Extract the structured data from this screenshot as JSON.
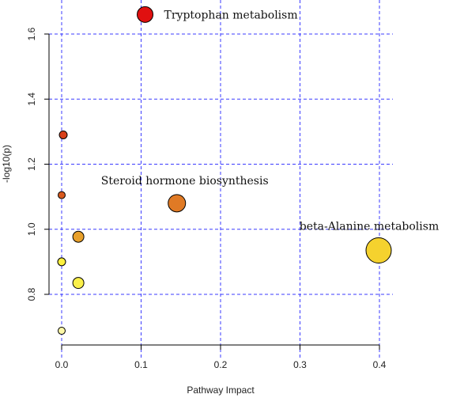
{
  "chart_data": {
    "type": "scatter",
    "title": "",
    "xlabel": "Pathway Impact",
    "ylabel": "-log10(p)",
    "xlim": [
      -0.01,
      0.42
    ],
    "ylim": [
      0.65,
      1.72
    ],
    "x_ticks": [
      0.0,
      0.1,
      0.2,
      0.3,
      0.4
    ],
    "x_tick_labels": [
      "0.0",
      "0.1",
      "0.2",
      "0.3",
      "0.4"
    ],
    "y_ticks": [
      0.8,
      1.0,
      1.2,
      1.4,
      1.6
    ],
    "y_tick_labels": [
      "0.8",
      "1.0",
      "1.2",
      "1.4",
      "1.6"
    ],
    "grid": true,
    "grid_color": "#3b3bff",
    "points": [
      {
        "x": 0.105,
        "y": 1.66,
        "size": 10,
        "color": "#e01010",
        "label": "Tryptophan metabolism"
      },
      {
        "x": 0.145,
        "y": 1.08,
        "size": 11,
        "color": "#e07a25",
        "label": "Steroid hormone biosynthesis"
      },
      {
        "x": 0.399,
        "y": 0.935,
        "size": 16,
        "color": "#f5d22e",
        "label": "beta-Alanine metabolism"
      },
      {
        "x": 0.002,
        "y": 1.29,
        "size": 5,
        "color": "#d8401a",
        "label": ""
      },
      {
        "x": 0.0,
        "y": 1.105,
        "size": 4.5,
        "color": "#d85a20",
        "label": ""
      },
      {
        "x": 0.021,
        "y": 0.977,
        "size": 7,
        "color": "#e8a02a",
        "label": ""
      },
      {
        "x": 0.0,
        "y": 0.9,
        "size": 5,
        "color": "#fcf040",
        "label": ""
      },
      {
        "x": 0.021,
        "y": 0.835,
        "size": 7,
        "color": "#fbf04a",
        "label": ""
      },
      {
        "x": 0.0,
        "y": 0.688,
        "size": 4.5,
        "color": "#fdf8a8",
        "label": ""
      }
    ]
  }
}
